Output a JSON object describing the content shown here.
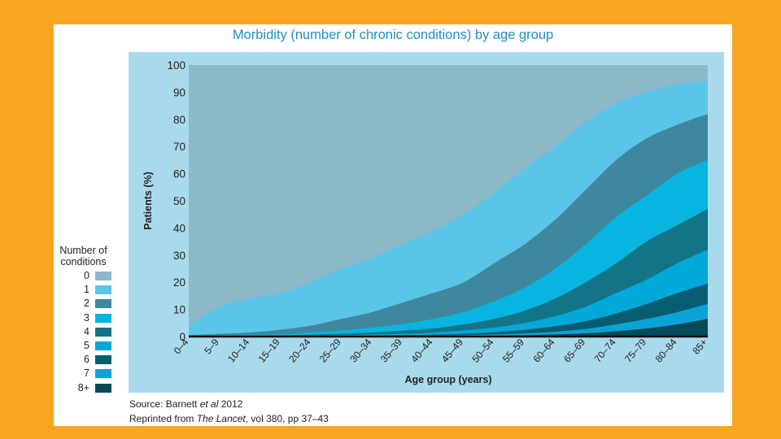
{
  "chart_data": {
    "type": "area",
    "title": "Morbidity (number of chronic conditions) by age group",
    "xlabel": "Age group (years)",
    "ylabel": "Patients (%)",
    "ylim": [
      0,
      100
    ],
    "yticks": [
      0,
      10,
      20,
      30,
      40,
      50,
      60,
      70,
      80,
      90,
      100
    ],
    "categories": [
      "0–4",
      "5–9",
      "10–14",
      "15–19",
      "20–24",
      "25–29",
      "30–34",
      "35–39",
      "40–44",
      "45–49",
      "50–54",
      "55–59",
      "60–64",
      "65–69",
      "70–74",
      "75–79",
      "80–84",
      "85+"
    ],
    "legend_title": "Number of conditions",
    "legend_position": "left",
    "stacked_boundaries_note": "each series value = cumulative percentage of patients with at least that many conditions",
    "series": [
      {
        "name": "0",
        "color": "#8db8c8",
        "values": [
          100,
          100,
          100,
          100,
          100,
          100,
          100,
          100,
          100,
          100,
          100,
          100,
          100,
          100,
          100,
          100,
          100,
          100
        ]
      },
      {
        "name": "1",
        "color": "#5bc5e8",
        "values": [
          4,
          11,
          14,
          16,
          20,
          25,
          29,
          34,
          39,
          45,
          53,
          62,
          70,
          79,
          86,
          90,
          93,
          94
        ]
      },
      {
        "name": "2",
        "color": "#3d889e",
        "values": [
          0.5,
          1,
          1.5,
          2.5,
          4,
          6.5,
          9,
          12.5,
          16,
          20,
          27,
          34,
          43,
          54,
          65,
          73,
          78,
          82
        ]
      },
      {
        "name": "3",
        "color": "#08b5e0",
        "values": [
          0.2,
          0.4,
          0.6,
          0.8,
          1.5,
          2.3,
          3.3,
          4.6,
          6.5,
          9,
          13,
          18,
          25,
          34,
          44,
          52,
          60,
          65
        ]
      },
      {
        "name": "4",
        "color": "#137487",
        "values": [
          0.1,
          0.2,
          0.3,
          0.4,
          0.7,
          1,
          1.5,
          2.2,
          3,
          4.5,
          6.5,
          9.5,
          14,
          20,
          27,
          35,
          41,
          47
        ]
      },
      {
        "name": "5",
        "color": "#00a9d8",
        "values": [
          0,
          0.1,
          0.1,
          0.2,
          0.3,
          0.5,
          0.7,
          1,
          1.5,
          2.3,
          3.3,
          5,
          7.5,
          11,
          16,
          21,
          27,
          32
        ]
      },
      {
        "name": "6",
        "color": "#075d6f",
        "values": [
          0,
          0,
          0,
          0.1,
          0.1,
          0.2,
          0.3,
          0.5,
          0.7,
          1,
          1.6,
          2.5,
          3.8,
          5.7,
          8.5,
          12,
          16,
          19.5
        ]
      },
      {
        "name": "7",
        "color": "#0ba3d7",
        "values": [
          0,
          0,
          0,
          0,
          0,
          0.1,
          0.1,
          0.2,
          0.3,
          0.5,
          0.8,
          1.2,
          1.8,
          2.8,
          4.5,
          6.5,
          9,
          12
        ]
      },
      {
        "name": "8+",
        "color": "#054a58",
        "values": [
          0,
          0,
          0,
          0,
          0,
          0,
          0,
          0.1,
          0.1,
          0.2,
          0.3,
          0.5,
          0.8,
          1.2,
          2,
          3,
          4.5,
          6.5
        ]
      }
    ]
  },
  "legend": {
    "title_line1": "Number of",
    "title_line2": "conditions"
  },
  "source": {
    "line1_prefix": "Source: Barnett ",
    "line1_italic": "et al",
    "line1_suffix": " 2012",
    "line2_prefix": "Reprinted from ",
    "line2_italic": "The Lancet",
    "line2_suffix": ", vol 380, pp 37–43"
  }
}
